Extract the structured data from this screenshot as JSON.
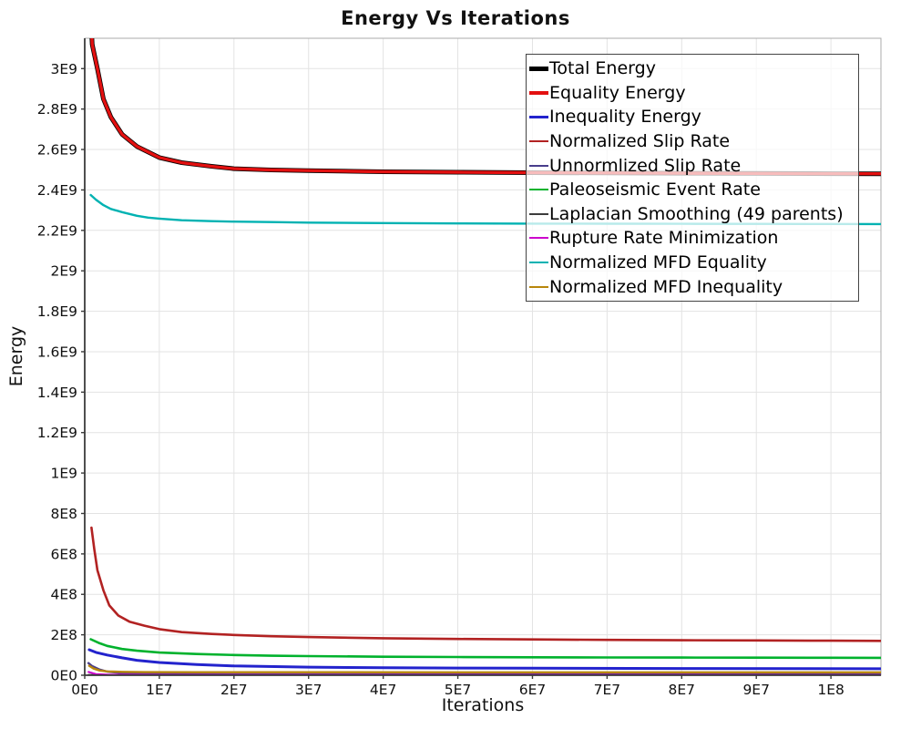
{
  "chart_data": {
    "type": "line",
    "title": "Energy Vs Iterations",
    "xlabel": "Iterations",
    "ylabel": "Energy",
    "xlim": [
      0,
      106700000.0
    ],
    "ylim": [
      0,
      3150000000.0
    ],
    "grid": true,
    "legend_position": "top-right-inside",
    "colors": {
      "grid": "#e3e3e3",
      "plot_border": "#ababab",
      "axis": "#3a3a3a",
      "tick_label": "#111111",
      "legend_border": "#444444",
      "legend_background": "rgba(255,255,255,0.72)"
    },
    "x_ticks": {
      "values": [
        0,
        10000000.0,
        20000000.0,
        30000000.0,
        40000000.0,
        50000000.0,
        60000000.0,
        70000000.0,
        80000000.0,
        90000000.0,
        100000000.0
      ],
      "labels": [
        "0E0",
        "1E7",
        "2E7",
        "3E7",
        "4E7",
        "5E7",
        "6E7",
        "7E7",
        "8E7",
        "9E7",
        "1E8"
      ]
    },
    "y_ticks": {
      "values": [
        0,
        200000000.0,
        400000000.0,
        600000000.0,
        800000000.0,
        1000000000.0,
        1200000000.0,
        1400000000.0,
        1600000000.0,
        1800000000.0,
        2000000000.0,
        2200000000.0,
        2400000000.0,
        2600000000.0,
        2800000000.0,
        3000000000.0
      ],
      "labels": [
        "0E0",
        "2E8",
        "4E8",
        "6E8",
        "8E8",
        "1E9",
        "1.2E9",
        "1.4E9",
        "1.6E9",
        "1.8E9",
        "2E9",
        "2.2E9",
        "2.4E9",
        "2.6E9",
        "2.8E9",
        "3E9"
      ]
    },
    "series": [
      {
        "name": "Total Energy",
        "color": "#000000",
        "width": 5,
        "swatch": 5,
        "points": [
          [
            500000.0,
            3500000000.0
          ],
          [
            1000000.0,
            3120000000.0
          ],
          [
            1700000.0,
            3000000000.0
          ],
          [
            2500000.0,
            2850000000.0
          ],
          [
            3500000.0,
            2760000000.0
          ],
          [
            5000000.0,
            2675000000.0
          ],
          [
            7000000.0,
            2615000000.0
          ],
          [
            10000000.0,
            2560000000.0
          ],
          [
            13000000.0,
            2535000000.0
          ],
          [
            17000000.0,
            2517000000.0
          ],
          [
            20000000.0,
            2505000000.0
          ],
          [
            25000000.0,
            2499000000.0
          ],
          [
            30000000.0,
            2495500000.0
          ],
          [
            40000000.0,
            2490000000.0
          ],
          [
            50000000.0,
            2487500000.0
          ],
          [
            60000000.0,
            2485500000.0
          ],
          [
            70000000.0,
            2484000000.0
          ],
          [
            80000000.0,
            2482500000.0
          ],
          [
            90000000.0,
            2481500000.0
          ],
          [
            100000000.0,
            2480500000.0
          ],
          [
            106700000.0,
            2480000000.0
          ]
        ]
      },
      {
        "name": "Equality Energy",
        "color": "#e31010",
        "width": 3.4,
        "swatch": 4,
        "points": [
          [
            500000.0,
            3500000000.0
          ],
          [
            1000000.0,
            3120000000.0
          ],
          [
            1700000.0,
            3000000000.0
          ],
          [
            2500000.0,
            2850000000.0
          ],
          [
            3500000.0,
            2760000000.0
          ],
          [
            5000000.0,
            2675000000.0
          ],
          [
            7000000.0,
            2615000000.0
          ],
          [
            10000000.0,
            2560000000.0
          ],
          [
            13000000.0,
            2535000000.0
          ],
          [
            17000000.0,
            2517000000.0
          ],
          [
            20000000.0,
            2505000000.0
          ],
          [
            25000000.0,
            2499000000.0
          ],
          [
            30000000.0,
            2495500000.0
          ],
          [
            40000000.0,
            2490000000.0
          ],
          [
            50000000.0,
            2487500000.0
          ],
          [
            60000000.0,
            2485500000.0
          ],
          [
            70000000.0,
            2484000000.0
          ],
          [
            80000000.0,
            2482500000.0
          ],
          [
            90000000.0,
            2481500000.0
          ],
          [
            100000000.0,
            2480500000.0
          ],
          [
            106700000.0,
            2480000000.0
          ]
        ]
      },
      {
        "name": "Inequality Energy",
        "color": "#2323cd",
        "width": 3,
        "swatch": 3,
        "points": [
          [
            600000.0,
            126000000.0
          ],
          [
            1500000.0,
            113000000.0
          ],
          [
            3000000.0,
            100000000.0
          ],
          [
            5000000.0,
            86000000.0
          ],
          [
            7000000.0,
            74000000.0
          ],
          [
            10000000.0,
            63000000.0
          ],
          [
            15000000.0,
            53000000.0
          ],
          [
            20000000.0,
            46000000.0
          ],
          [
            30000000.0,
            40000000.0
          ],
          [
            40000000.0,
            37000000.0
          ],
          [
            50000000.0,
            35500000.0
          ],
          [
            60000000.0,
            34500000.0
          ],
          [
            80000000.0,
            33500000.0
          ],
          [
            106700000.0,
            32000000.0
          ]
        ]
      },
      {
        "name": "Normalized Slip Rate",
        "color": "#b22222",
        "width": 2.6,
        "swatch": 2,
        "points": [
          [
            900000.0,
            730000000.0
          ],
          [
            1300000.0,
            620000000.0
          ],
          [
            1700000.0,
            520000000.0
          ],
          [
            2500000.0,
            420000000.0
          ],
          [
            3300000.0,
            345000000.0
          ],
          [
            4500000.0,
            295000000.0
          ],
          [
            6000000.0,
            265000000.0
          ],
          [
            8000000.0,
            245000000.0
          ],
          [
            10000000.0,
            228000000.0
          ],
          [
            13000000.0,
            213000000.0
          ],
          [
            17000000.0,
            204000000.0
          ],
          [
            20000000.0,
            199000000.0
          ],
          [
            25000000.0,
            193000000.0
          ],
          [
            30000000.0,
            189000000.0
          ],
          [
            40000000.0,
            183000000.0
          ],
          [
            50000000.0,
            179500000.0
          ],
          [
            60000000.0,
            177000000.0
          ],
          [
            70000000.0,
            175000000.0
          ],
          [
            80000000.0,
            173000000.0
          ],
          [
            90000000.0,
            172000000.0
          ],
          [
            100000000.0,
            171000000.0
          ],
          [
            106700000.0,
            170000000.0
          ]
        ]
      },
      {
        "name": "Unnormlized Slip Rate",
        "color": "#483d8b",
        "width": 2.4,
        "swatch": 2,
        "points": [
          [
            500000.0,
            60000000.0
          ],
          [
            1000000.0,
            45000000.0
          ],
          [
            2000000.0,
            28000000.0
          ],
          [
            3000000.0,
            18000000.0
          ],
          [
            5000000.0,
            10500000.0
          ],
          [
            8000000.0,
            7500000.0
          ],
          [
            10000000.0,
            6500000.0
          ],
          [
            20000000.0,
            5000000.0
          ],
          [
            40000000.0,
            4500000.0
          ],
          [
            70000000.0,
            4000000.0
          ],
          [
            106700000.0,
            4000000.0
          ]
        ]
      },
      {
        "name": "Paleoseismic Event Rate",
        "color": "#00b22d",
        "width": 2.6,
        "swatch": 2,
        "points": [
          [
            800000.0,
            178000000.0
          ],
          [
            2000000.0,
            158000000.0
          ],
          [
            3000000.0,
            145000000.0
          ],
          [
            5000000.0,
            130000000.0
          ],
          [
            7000000.0,
            121000000.0
          ],
          [
            10000000.0,
            112000000.0
          ],
          [
            15000000.0,
            105000000.0
          ],
          [
            20000000.0,
            100000000.0
          ],
          [
            25000000.0,
            96500000.0
          ],
          [
            30000000.0,
            94500000.0
          ],
          [
            40000000.0,
            91500000.0
          ],
          [
            50000000.0,
            90000000.0
          ],
          [
            60000000.0,
            89000000.0
          ],
          [
            70000000.0,
            88000000.0
          ],
          [
            80000000.0,
            87500000.0
          ],
          [
            90000000.0,
            87000000.0
          ],
          [
            100000000.0,
            86500000.0
          ],
          [
            106700000.0,
            86000000.0
          ]
        ]
      },
      {
        "name": "Laplacian Smoothing (49 parents)",
        "color": "#3c3c3c",
        "width": 2,
        "swatch": 2,
        "points": [
          [
            500000.0,
            2000000.0
          ],
          [
            106700000.0,
            1500000.0
          ]
        ]
      },
      {
        "name": "Rupture Rate Minimization",
        "color": "#cc00cc",
        "width": 2,
        "swatch": 2,
        "points": [
          [
            500000.0,
            16000000.0
          ],
          [
            1500000.0,
            6000000.0
          ],
          [
            3000000.0,
            3000000.0
          ],
          [
            10000000.0,
            2000000.0
          ],
          [
            106700000.0,
            1500000.0
          ]
        ]
      },
      {
        "name": "Normalized MFD Equality",
        "color": "#00b2b2",
        "width": 2.4,
        "swatch": 2,
        "points": [
          [
            800000.0,
            2375000000.0
          ],
          [
            1500000.0,
            2352000000.0
          ],
          [
            2500000.0,
            2325000000.0
          ],
          [
            3500000.0,
            2306000000.0
          ],
          [
            5000000.0,
            2290000000.0
          ],
          [
            7000000.0,
            2272000000.0
          ],
          [
            8500000.0,
            2263000000.0
          ],
          [
            10000000.0,
            2258000000.0
          ],
          [
            13000000.0,
            2250000000.0
          ],
          [
            17000000.0,
            2245500000.0
          ],
          [
            20000000.0,
            2243500000.0
          ],
          [
            25000000.0,
            2241000000.0
          ],
          [
            30000000.0,
            2238500000.0
          ],
          [
            40000000.0,
            2236000000.0
          ],
          [
            50000000.0,
            2234500000.0
          ],
          [
            60000000.0,
            2233500000.0
          ],
          [
            70000000.0,
            2233000000.0
          ],
          [
            80000000.0,
            2232500000.0
          ],
          [
            90000000.0,
            2232000000.0
          ],
          [
            100000000.0,
            2231500000.0
          ],
          [
            106700000.0,
            2231000000.0
          ]
        ]
      },
      {
        "name": "Normalized MFD Inequality",
        "color": "#b8860b",
        "width": 2.4,
        "swatch": 2,
        "points": [
          [
            600000.0,
            47000000.0
          ],
          [
            1200000.0,
            33000000.0
          ],
          [
            2000000.0,
            23500000.0
          ],
          [
            3000000.0,
            19000000.0
          ],
          [
            5000000.0,
            16500000.0
          ],
          [
            8000000.0,
            15500000.0
          ],
          [
            15000000.0,
            15000000.0
          ],
          [
            30000000.0,
            14700000.0
          ],
          [
            60000000.0,
            14500000.0
          ],
          [
            106700000.0,
            14300000.0
          ]
        ]
      }
    ]
  }
}
